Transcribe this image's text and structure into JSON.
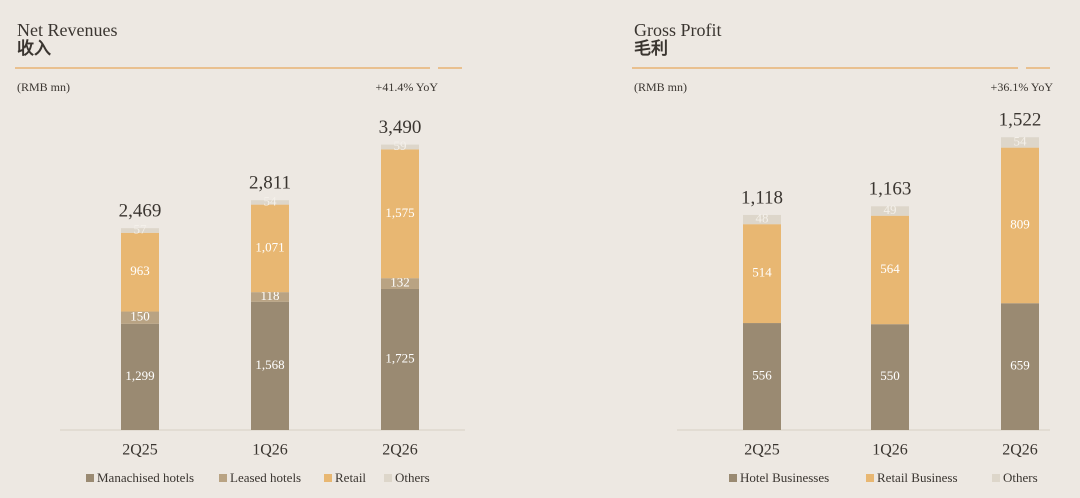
{
  "chart_data": [
    {
      "type": "bar",
      "stacked": true,
      "title": "Net Revenues",
      "subtitle": "收入",
      "unit_label": "(RMB mn)",
      "annotation": "+41.4% YoY",
      "categories": [
        "2Q25",
        "1Q26",
        "2Q26"
      ],
      "series": [
        {
          "name": "Manachised hotels",
          "color": "#9a8a72",
          "values": [
            1299,
            1568,
            1725
          ],
          "value_labels": [
            "1,299",
            "1,568",
            "1,725"
          ]
        },
        {
          "name": "Leased hotels",
          "color": "#b9a383",
          "values": [
            150,
            118,
            132
          ]
        },
        {
          "name": "Retail",
          "color": "#e8b772",
          "values": [
            963,
            1071,
            1575
          ],
          "value_labels": [
            "963",
            "1,071",
            "1,575"
          ]
        },
        {
          "name": "Others",
          "color": "#ddd6ca",
          "values": [
            57,
            54,
            59
          ]
        }
      ],
      "totals": [
        2469,
        2811,
        3490
      ],
      "total_labels": [
        "2,469",
        "2,811",
        "3,490"
      ],
      "ylim": [
        0,
        4000
      ]
    },
    {
      "type": "bar",
      "stacked": true,
      "title": "Gross Profit",
      "subtitle": "毛利",
      "unit_label": "(RMB mn)",
      "annotation": "+36.1% YoY",
      "categories": [
        "2Q25",
        "1Q26",
        "2Q26"
      ],
      "series": [
        {
          "name": "Hotel Businesses",
          "color": "#9a8a72",
          "values": [
            556,
            550,
            659
          ]
        },
        {
          "name": "Retail Business",
          "color": "#e8b772",
          "values": [
            514,
            564,
            809
          ]
        },
        {
          "name": "Others",
          "color": "#ddd6ca",
          "values": [
            48,
            49,
            54
          ]
        }
      ],
      "totals": [
        1118,
        1163,
        1522
      ],
      "total_labels": [
        "1,118",
        "1,163",
        "1,522"
      ],
      "ylim": [
        0,
        1700
      ]
    }
  ]
}
